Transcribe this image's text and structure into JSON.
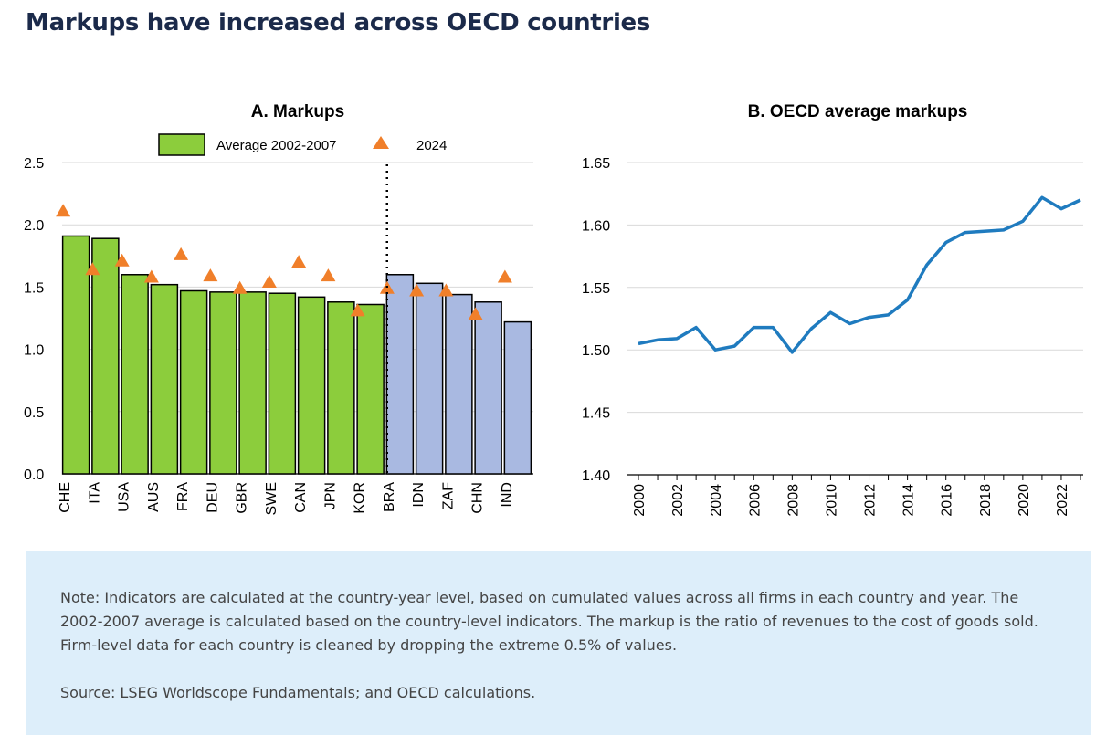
{
  "page": {
    "title": "Markups have increased across OECD countries",
    "note": "Note: Indicators are calculated at the country-year level, based on cumulated values across all firms in each country and year. The 2002-2007 average is calculated based on the country-level indicators. The markup is the ratio of revenues to the cost of goods sold. Firm-level data for each country is cleaned by dropping the extreme 0.5% of values.",
    "source": "Source: LSEG Worldscope Fundamentals; and OECD calculations."
  },
  "colors": {
    "oecd_bar": "#8ccd3c",
    "non_oecd_bar": "#a9b9e1",
    "marker_2024": "#f07f2a",
    "line": "#1f7bbf",
    "note_bg": "#ddeefa"
  },
  "chart_data": [
    {
      "type": "bar",
      "title": "A. Markups",
      "categories": [
        "CHE",
        "ITA",
        "USA",
        "AUS",
        "FRA",
        "DEU",
        "GBR",
        "SWE",
        "CAN",
        "JPN",
        "KOR",
        "BRA",
        "IDN",
        "ZAF",
        "CHN",
        "IND"
      ],
      "oecd_count": 11,
      "series": [
        {
          "name": "Average 2002-2007",
          "kind": "bar",
          "values": [
            1.91,
            1.89,
            1.6,
            1.52,
            1.47,
            1.46,
            1.46,
            1.45,
            1.42,
            1.38,
            1.36,
            1.6,
            1.53,
            1.44,
            1.38,
            1.22
          ]
        },
        {
          "name": "2024",
          "kind": "marker",
          "values": [
            2.11,
            1.64,
            1.71,
            1.58,
            1.76,
            1.59,
            1.49,
            1.54,
            1.7,
            1.59,
            1.31,
            1.49,
            1.47,
            1.47,
            1.28,
            1.58
          ]
        }
      ],
      "ylim": [
        0.0,
        2.5
      ],
      "yticks": [
        "0.0",
        "0.5",
        "1.0",
        "1.5",
        "2.0",
        "2.5"
      ],
      "xlabel": "",
      "ylabel": "",
      "legend": "top"
    },
    {
      "type": "line",
      "title": "B. OECD average markups",
      "x": [
        2000,
        2001,
        2002,
        2003,
        2004,
        2005,
        2006,
        2007,
        2008,
        2009,
        2010,
        2011,
        2012,
        2013,
        2014,
        2015,
        2016,
        2017,
        2018,
        2019,
        2020,
        2021,
        2022,
        2023
      ],
      "series": [
        {
          "name": "OECD average markups",
          "values": [
            1.505,
            1.508,
            1.509,
            1.518,
            1.5,
            1.503,
            1.518,
            1.518,
            1.498,
            1.517,
            1.53,
            1.521,
            1.526,
            1.528,
            1.54,
            1.568,
            1.586,
            1.594,
            1.595,
            1.596,
            1.603,
            1.622,
            1.613,
            1.62
          ]
        }
      ],
      "ylim": [
        1.4,
        1.65
      ],
      "yticks": [
        "1.40",
        "1.45",
        "1.50",
        "1.55",
        "1.60",
        "1.65"
      ],
      "xticks": [
        "2000",
        "2002",
        "2004",
        "2006",
        "2008",
        "2010",
        "2012",
        "2014",
        "2016",
        "2018",
        "2020",
        "2022"
      ],
      "xlabel": "",
      "ylabel": ""
    }
  ]
}
